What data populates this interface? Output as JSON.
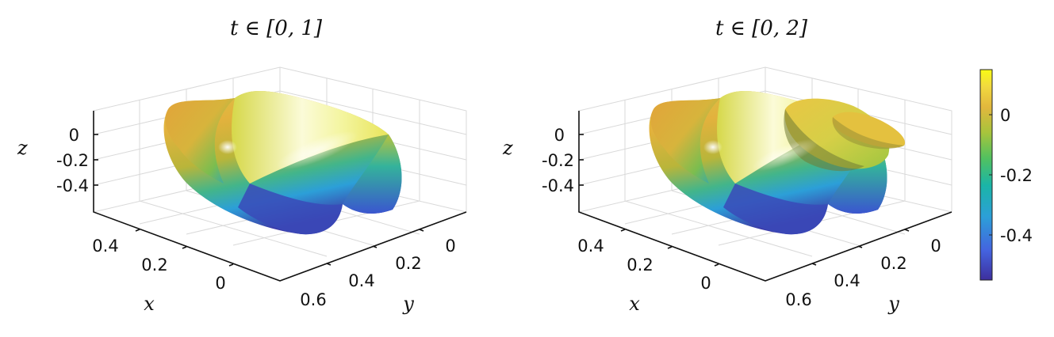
{
  "colors": {
    "background": "#ffffff",
    "grid": "#d9d9d9",
    "axis": "#111111",
    "colormap": [
      "#3d2f9d",
      "#4463df",
      "#2c9fd8",
      "#1ab5a7",
      "#52c15f",
      "#a7c43c",
      "#e1b73d",
      "#f2d93f",
      "#f9fb15"
    ]
  },
  "chart_data": [
    {
      "type": "surface",
      "title": "t ∈ [0, 1]",
      "xlabel": "x",
      "ylabel": "y",
      "zlabel": "z",
      "x_ticks": [
        "0.4",
        "0.2",
        "0"
      ],
      "y_ticks": [
        "0",
        "0.2",
        "0.4",
        "0.6"
      ],
      "z_ticks": [
        "0",
        "-0.2",
        "-0.4"
      ],
      "grid": true
    },
    {
      "type": "surface",
      "title": "t ∈ [0, 2]",
      "xlabel": "x",
      "ylabel": "y",
      "zlabel": "z",
      "x_ticks": [
        "0.4",
        "0.2",
        "0"
      ],
      "y_ticks": [
        "0",
        "0.2",
        "0.4",
        "0.6"
      ],
      "z_ticks": [
        "0",
        "-0.2",
        "-0.4"
      ],
      "grid": true
    }
  ],
  "colorbar": {
    "ticks": [
      "0",
      "-0.2",
      "-0.4"
    ],
    "tick_values": [
      0,
      -0.2,
      -0.4
    ],
    "range": [
      -0.55,
      0.15
    ]
  }
}
